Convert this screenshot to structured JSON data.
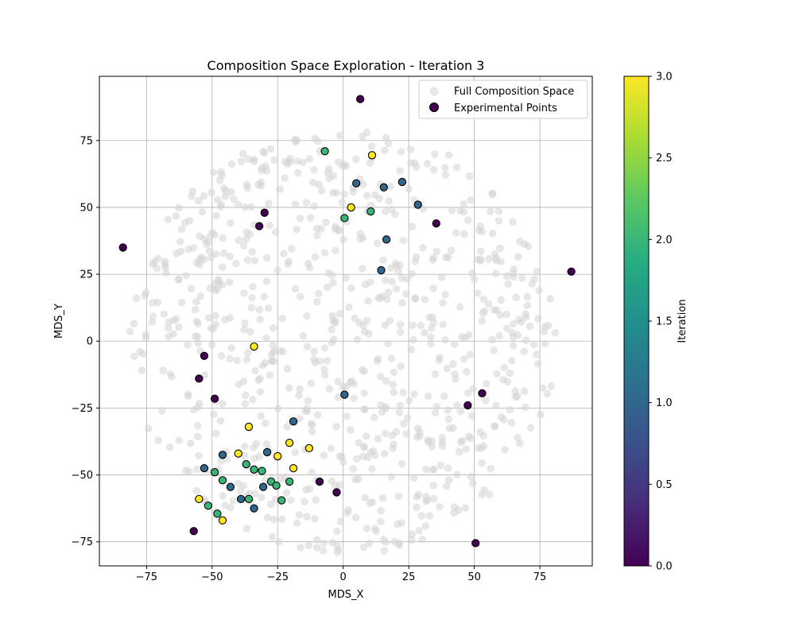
{
  "chart_data": {
    "type": "scatter",
    "title": "Composition Space Exploration - Iteration 3",
    "xlabel": "MDS_X",
    "ylabel": "MDS_Y",
    "xlim": [
      -93,
      95
    ],
    "ylim": [
      -84,
      99
    ],
    "x_ticks": [
      -75,
      -50,
      -25,
      0,
      25,
      50,
      75
    ],
    "y_ticks": [
      -75,
      -50,
      -25,
      0,
      25,
      50,
      75
    ],
    "x_tick_labels": [
      "−75",
      "−50",
      "−25",
      "0",
      "25",
      "50",
      "75"
    ],
    "y_tick_labels": [
      "−75",
      "−50",
      "−25",
      "0",
      "25",
      "50",
      "75"
    ],
    "grid": true,
    "legend": {
      "position": "top-right",
      "entries": [
        "Full Composition Space",
        "Experimental Points"
      ]
    },
    "colorbar": {
      "label": "Iteration",
      "colormap": "viridis",
      "range": [
        0.0,
        3.0
      ],
      "ticks": [
        0.0,
        0.5,
        1.0,
        1.5,
        2.0,
        2.5,
        3.0
      ],
      "tick_labels": [
        "0.0",
        "0.5",
        "1.0",
        "1.5",
        "2.0",
        "2.5",
        "3.0"
      ]
    },
    "series": [
      {
        "name": "Full Composition Space",
        "color": "#d3d3d3",
        "opacity": 0.55,
        "points_description": "approx. 800 background points filling a disc of radius ~80 centered near (0, 0)",
        "point_count": 800
      },
      {
        "name": "Experimental Points",
        "points": [
          {
            "x": 6.5,
            "y": 90.5,
            "iteration": 0
          },
          {
            "x": -84,
            "y": 35,
            "iteration": 0
          },
          {
            "x": -30,
            "y": 48,
            "iteration": 0
          },
          {
            "x": -32,
            "y": 43,
            "iteration": 0
          },
          {
            "x": 35.5,
            "y": 44,
            "iteration": 0
          },
          {
            "x": 87,
            "y": 26,
            "iteration": 0
          },
          {
            "x": -53,
            "y": -5.5,
            "iteration": 0
          },
          {
            "x": -55,
            "y": -14,
            "iteration": 0
          },
          {
            "x": -49,
            "y": -21.5,
            "iteration": 0
          },
          {
            "x": 53,
            "y": -19.5,
            "iteration": 0
          },
          {
            "x": 47.5,
            "y": -24,
            "iteration": 0
          },
          {
            "x": -9,
            "y": -52.5,
            "iteration": 0
          },
          {
            "x": -2.5,
            "y": -56.5,
            "iteration": 0
          },
          {
            "x": -57,
            "y": -71,
            "iteration": 0
          },
          {
            "x": 50.5,
            "y": -75.5,
            "iteration": 0
          },
          {
            "x": 5,
            "y": 59,
            "iteration": 1
          },
          {
            "x": 15.5,
            "y": 57.5,
            "iteration": 1
          },
          {
            "x": 22.5,
            "y": 59.5,
            "iteration": 1
          },
          {
            "x": 28.5,
            "y": 51,
            "iteration": 1
          },
          {
            "x": 16.5,
            "y": 38,
            "iteration": 1
          },
          {
            "x": 14.5,
            "y": 26.5,
            "iteration": 1
          },
          {
            "x": 0.5,
            "y": -20,
            "iteration": 1
          },
          {
            "x": -19,
            "y": -30,
            "iteration": 1
          },
          {
            "x": -29,
            "y": -41.5,
            "iteration": 1
          },
          {
            "x": -46,
            "y": -42.5,
            "iteration": 1
          },
          {
            "x": -53,
            "y": -47.5,
            "iteration": 1
          },
          {
            "x": -43,
            "y": -54.5,
            "iteration": 1
          },
          {
            "x": -39,
            "y": -59,
            "iteration": 1
          },
          {
            "x": -30.5,
            "y": -54.5,
            "iteration": 1
          },
          {
            "x": -34,
            "y": -62.5,
            "iteration": 1
          },
          {
            "x": -7,
            "y": 71,
            "iteration": 2
          },
          {
            "x": 0.5,
            "y": 46,
            "iteration": 2
          },
          {
            "x": 10.5,
            "y": 48.5,
            "iteration": 2
          },
          {
            "x": -49,
            "y": -49,
            "iteration": 2
          },
          {
            "x": -37,
            "y": -46,
            "iteration": 2
          },
          {
            "x": -34,
            "y": -48,
            "iteration": 2
          },
          {
            "x": -31,
            "y": -48.5,
            "iteration": 2
          },
          {
            "x": -27.5,
            "y": -52.5,
            "iteration": 2
          },
          {
            "x": -25.5,
            "y": -54,
            "iteration": 2
          },
          {
            "x": -20.5,
            "y": -52.5,
            "iteration": 2
          },
          {
            "x": -46,
            "y": -52,
            "iteration": 2
          },
          {
            "x": -51.5,
            "y": -61.5,
            "iteration": 2
          },
          {
            "x": -36,
            "y": -59,
            "iteration": 2
          },
          {
            "x": -23.5,
            "y": -59.5,
            "iteration": 2
          },
          {
            "x": -48,
            "y": -64.5,
            "iteration": 2
          },
          {
            "x": 11,
            "y": 69.5,
            "iteration": 3
          },
          {
            "x": 3,
            "y": 50,
            "iteration": 3
          },
          {
            "x": -34,
            "y": -2,
            "iteration": 3
          },
          {
            "x": -36,
            "y": -32,
            "iteration": 3
          },
          {
            "x": -40,
            "y": -42,
            "iteration": 3
          },
          {
            "x": -20.5,
            "y": -38,
            "iteration": 3
          },
          {
            "x": -25,
            "y": -43,
            "iteration": 3
          },
          {
            "x": -13,
            "y": -40,
            "iteration": 3
          },
          {
            "x": -19,
            "y": -47.5,
            "iteration": 3
          },
          {
            "x": -55,
            "y": -59,
            "iteration": 3
          },
          {
            "x": -46,
            "y": -67,
            "iteration": 3
          }
        ]
      }
    ]
  }
}
